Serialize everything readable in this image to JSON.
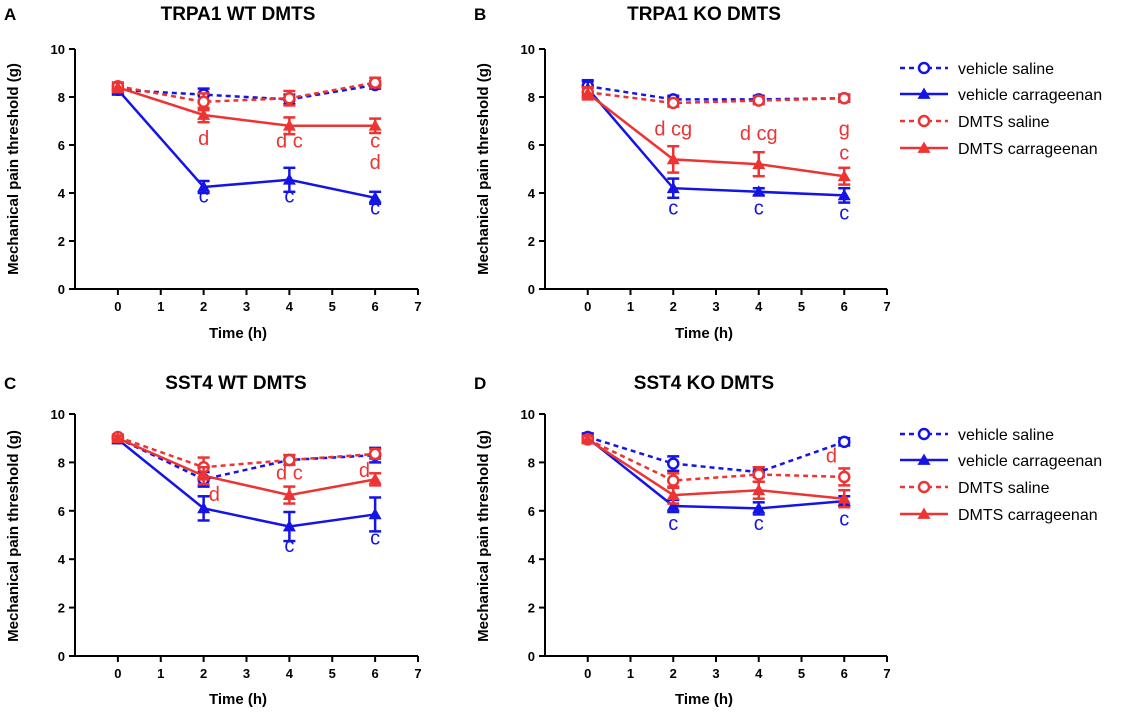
{
  "figure": {
    "legend": {
      "entries": [
        {
          "label": "vehicle saline",
          "color": "#1414e6",
          "marker": "open-circle",
          "dash": true
        },
        {
          "label": "vehicle carrageenan",
          "color": "#1414e6",
          "marker": "filled-triangle",
          "dash": false
        },
        {
          "label": "DMTS saline",
          "color": "#ee3333",
          "marker": "open-circle",
          "dash": true
        },
        {
          "label": "DMTS carrageenan",
          "color": "#ee3333",
          "marker": "filled-triangle",
          "dash": false
        }
      ]
    },
    "colors": {
      "blue": "#1414e6",
      "red": "#ee3333"
    }
  },
  "chart_data": [
    {
      "panel": "A",
      "type": "line",
      "title": "TRPA1 WT DMTS",
      "xlabel": "Time (h)",
      "ylabel": "Mechanical pain threshold (g)",
      "xlim": [
        -1,
        7
      ],
      "ylim": [
        0,
        10
      ],
      "xticks": [
        0,
        1,
        2,
        3,
        4,
        5,
        6,
        7
      ],
      "yticks": [
        0,
        2,
        4,
        6,
        8,
        10
      ],
      "x": [
        0,
        2,
        4,
        6
      ],
      "series": [
        {
          "name": "vehicle saline",
          "values": [
            8.3,
            8.1,
            7.9,
            8.5
          ],
          "errors": [
            0.15,
            0.25,
            0.2,
            0.15
          ]
        },
        {
          "name": "vehicle carrageenan",
          "values": [
            8.3,
            4.25,
            4.55,
            3.8
          ],
          "errors": [
            0.2,
            0.25,
            0.5,
            0.25
          ]
        },
        {
          "name": "DMTS saline",
          "values": [
            8.45,
            7.8,
            7.95,
            8.6
          ],
          "errors": [
            0.15,
            0.35,
            0.3,
            0.2
          ]
        },
        {
          "name": "DMTS carrageenan",
          "values": [
            8.4,
            7.25,
            6.8,
            6.8
          ],
          "errors": [
            0.2,
            0.3,
            0.35,
            0.3
          ]
        }
      ],
      "annotations": [
        {
          "x": 2,
          "y": 3.6,
          "text": "c",
          "color": "blue"
        },
        {
          "x": 4,
          "y": 3.6,
          "text": "c",
          "color": "blue"
        },
        {
          "x": 6,
          "y": 3.1,
          "text": "c",
          "color": "blue"
        },
        {
          "x": 2,
          "y": 6.0,
          "text": "d",
          "color": "red"
        },
        {
          "x": 4,
          "y": 5.9,
          "text": "d c",
          "color": "red"
        },
        {
          "x": 6,
          "y": 5.9,
          "text": "c",
          "color": "red"
        },
        {
          "x": 6,
          "y": 5.0,
          "text": "d",
          "color": "red"
        }
      ]
    },
    {
      "panel": "B",
      "type": "line",
      "title": "TRPA1 KO DMTS",
      "xlabel": "Time (h)",
      "ylabel": "Mechanical pain threshold (g)",
      "xlim": [
        -1,
        7
      ],
      "ylim": [
        0,
        10
      ],
      "xticks": [
        0,
        1,
        2,
        3,
        4,
        5,
        6,
        7
      ],
      "yticks": [
        0,
        2,
        4,
        6,
        8,
        10
      ],
      "x": [
        0,
        2,
        4,
        6
      ],
      "series": [
        {
          "name": "vehicle saline",
          "values": [
            8.45,
            7.9,
            7.9,
            7.95
          ],
          "errors": [
            0.25,
            0.15,
            0.15,
            0.15
          ]
        },
        {
          "name": "vehicle carrageenan",
          "values": [
            8.35,
            4.2,
            4.05,
            3.9
          ],
          "errors": [
            0.3,
            0.4,
            0.15,
            0.3
          ]
        },
        {
          "name": "DMTS saline",
          "values": [
            8.2,
            7.75,
            7.85,
            7.95
          ],
          "errors": [
            0.2,
            0.15,
            0.15,
            0.15
          ]
        },
        {
          "name": "DMTS carrageenan",
          "values": [
            8.15,
            5.4,
            5.2,
            4.7
          ],
          "errors": [
            0.25,
            0.55,
            0.5,
            0.35
          ]
        }
      ],
      "annotations": [
        {
          "x": 2,
          "y": 3.1,
          "text": "c",
          "color": "blue"
        },
        {
          "x": 4,
          "y": 3.1,
          "text": "c",
          "color": "blue"
        },
        {
          "x": 6,
          "y": 2.9,
          "text": "c",
          "color": "blue"
        },
        {
          "x": 2,
          "y": 6.4,
          "text": "d cg",
          "color": "red"
        },
        {
          "x": 4,
          "y": 6.2,
          "text": "d cg",
          "color": "red"
        },
        {
          "x": 6,
          "y": 6.4,
          "text": "g",
          "color": "red"
        },
        {
          "x": 6,
          "y": 5.4,
          "text": "c",
          "color": "red"
        }
      ]
    },
    {
      "panel": "C",
      "type": "line",
      "title": "SST4 WT DMTS",
      "xlabel": "Time (h)",
      "ylabel": "Mechanical pain threshold (g)",
      "xlim": [
        -1,
        7
      ],
      "ylim": [
        0,
        10
      ],
      "xticks": [
        0,
        1,
        2,
        3,
        4,
        5,
        6,
        7
      ],
      "yticks": [
        0,
        2,
        4,
        6,
        8,
        10
      ],
      "x": [
        0,
        2,
        4,
        6
      ],
      "series": [
        {
          "name": "vehicle saline",
          "values": [
            9.0,
            7.3,
            8.1,
            8.3
          ],
          "errors": [
            0.1,
            0.3,
            0.2,
            0.3
          ]
        },
        {
          "name": "vehicle carrageenan",
          "values": [
            8.95,
            6.1,
            5.35,
            5.85
          ],
          "errors": [
            0.15,
            0.5,
            0.6,
            0.7
          ]
        },
        {
          "name": "DMTS saline",
          "values": [
            9.05,
            7.8,
            8.1,
            8.35
          ],
          "errors": [
            0.1,
            0.4,
            0.2,
            0.2
          ]
        },
        {
          "name": "DMTS carrageenan",
          "values": [
            9.0,
            7.45,
            6.65,
            7.3
          ],
          "errors": [
            0.1,
            0.35,
            0.35,
            0.25
          ]
        }
      ],
      "annotations": [
        {
          "x": 4,
          "y": 4.3,
          "text": "c",
          "color": "blue"
        },
        {
          "x": 6,
          "y": 4.6,
          "text": "c",
          "color": "blue"
        },
        {
          "x": 2.25,
          "y": 6.4,
          "text": "d",
          "color": "red"
        },
        {
          "x": 4,
          "y": 7.3,
          "text": "d c",
          "color": "red"
        },
        {
          "x": 5.75,
          "y": 7.4,
          "text": "d",
          "color": "red"
        }
      ]
    },
    {
      "panel": "D",
      "type": "line",
      "title": "SST4 KO DMTS",
      "xlabel": "Time (h)",
      "ylabel": "Mechanical pain threshold (g)",
      "xlim": [
        -1,
        7
      ],
      "ylim": [
        0,
        10
      ],
      "xticks": [
        0,
        1,
        2,
        3,
        4,
        5,
        6,
        7
      ],
      "yticks": [
        0,
        2,
        4,
        6,
        8,
        10
      ],
      "x": [
        0,
        2,
        4,
        6
      ],
      "series": [
        {
          "name": "vehicle saline",
          "values": [
            9.05,
            7.95,
            7.6,
            8.85
          ],
          "errors": [
            0.15,
            0.3,
            0.2,
            0.15
          ]
        },
        {
          "name": "vehicle carrageenan",
          "values": [
            9.0,
            6.2,
            6.1,
            6.4
          ],
          "errors": [
            0.15,
            0.25,
            0.25,
            0.2
          ]
        },
        {
          "name": "DMTS saline",
          "values": [
            8.95,
            7.25,
            7.5,
            7.4
          ],
          "errors": [
            0.1,
            0.3,
            0.3,
            0.35
          ]
        },
        {
          "name": "DMTS carrageenan",
          "values": [
            8.95,
            6.65,
            6.85,
            6.5
          ],
          "errors": [
            0.15,
            0.35,
            0.35,
            0.35
          ]
        }
      ],
      "annotations": [
        {
          "x": 2,
          "y": 5.2,
          "text": "c",
          "color": "blue"
        },
        {
          "x": 4,
          "y": 5.2,
          "text": "c",
          "color": "blue"
        },
        {
          "x": 6,
          "y": 5.4,
          "text": "c",
          "color": "blue"
        },
        {
          "x": 5.7,
          "y": 8.0,
          "text": "d",
          "color": "red"
        }
      ]
    }
  ]
}
